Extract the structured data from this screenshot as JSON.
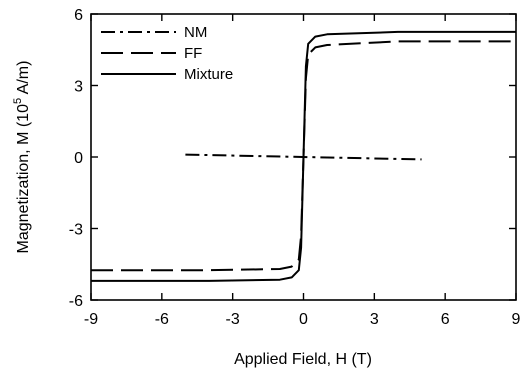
{
  "chart_data": {
    "type": "line",
    "xlabel": "Applied Field, H (T)",
    "ylabel": {
      "prefix": "Magnetization, M (10",
      "superscript": "5",
      "suffix": " A/m)"
    },
    "xlim": [
      -9,
      9
    ],
    "ylim": [
      -6,
      6
    ],
    "xticks": [
      "-9",
      "-6",
      "-3",
      "0",
      "3",
      "6",
      "9"
    ],
    "yticks": [
      "-6",
      "-3",
      "0",
      "3",
      "6"
    ],
    "grid": false,
    "legend_position": "top-left",
    "series": [
      {
        "name": "NM",
        "style": "dash-dot",
        "x": [
          -5,
          5
        ],
        "y": [
          0.1,
          -0.1
        ]
      },
      {
        "name": "FF",
        "style": "dashed",
        "x": [
          -9,
          -4,
          -1,
          -0.5,
          -0.2,
          -0.1,
          0,
          0.1,
          0.2,
          0.5,
          1,
          4,
          9
        ],
        "y": [
          -4.75,
          -4.75,
          -4.7,
          -4.6,
          -4.3,
          -3.3,
          0,
          3.3,
          4.3,
          4.6,
          4.7,
          4.85,
          4.85
        ]
      },
      {
        "name": "Mixture",
        "style": "solid",
        "x": [
          -9,
          -4,
          -1,
          -0.5,
          -0.2,
          -0.1,
          0,
          0.1,
          0.2,
          0.5,
          1,
          4,
          9
        ],
        "y": [
          -5.2,
          -5.2,
          -5.15,
          -5.05,
          -4.75,
          -3.8,
          0,
          3.8,
          4.75,
          5.05,
          5.15,
          5.25,
          5.25
        ]
      }
    ]
  }
}
